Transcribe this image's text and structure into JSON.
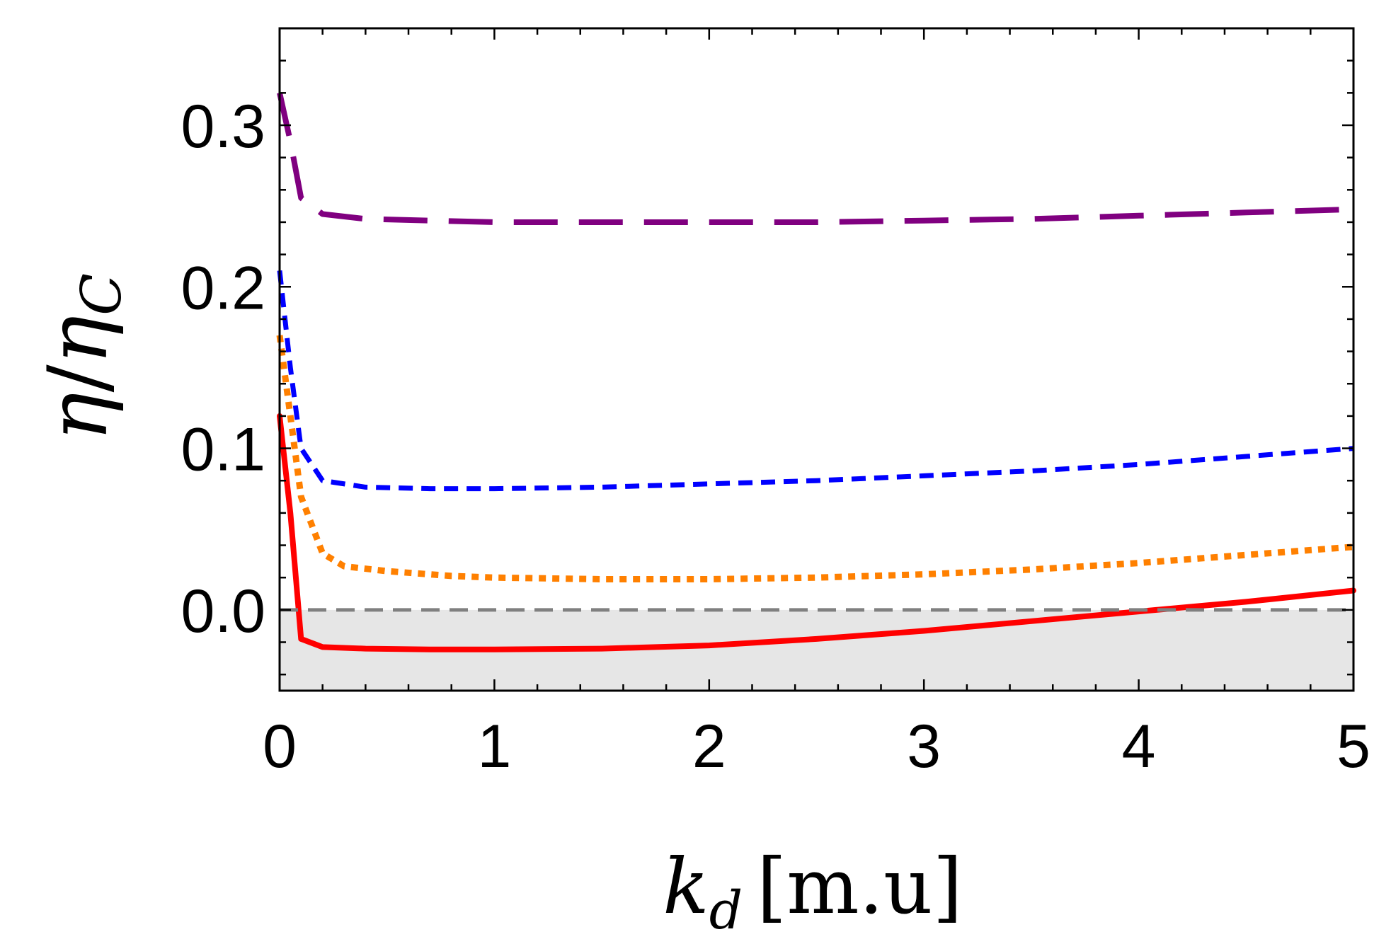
{
  "chart_data": {
    "type": "line",
    "title": "",
    "xlabel": "k_d [m.u]",
    "xlabel_parts": {
      "main": "k",
      "subscript": "d",
      "units": "[m.u]"
    },
    "ylabel": "η/η_C",
    "ylabel_parts": {
      "num": "η",
      "slash": "/",
      "den": "η",
      "den_subscript": "C"
    },
    "xlim": [
      0,
      5
    ],
    "ylim": [
      -0.05,
      0.36
    ],
    "xticks": [
      0,
      1,
      2,
      3,
      4,
      5
    ],
    "xtick_labels": [
      "0",
      "1",
      "2",
      "3",
      "4",
      "5"
    ],
    "yticks": [
      0.0,
      0.1,
      0.2,
      0.3
    ],
    "ytick_labels": [
      "0.0",
      "0.1",
      "0.2",
      "0.3"
    ],
    "grid": false,
    "shaded_region": {
      "y_from": -0.05,
      "y_to": 0.0,
      "color": "#e6e6e6"
    },
    "reference_line": {
      "y": 0.0,
      "color": "#808080",
      "style": "dashed"
    },
    "series": [
      {
        "name": "purple-long-dash",
        "color": "#800080",
        "style": "long-dash",
        "x": [
          0.0,
          0.05,
          0.1,
          0.2,
          0.4,
          0.7,
          1.0,
          1.5,
          2.0,
          2.5,
          3.0,
          3.5,
          4.0,
          4.5,
          5.0
        ],
        "y": [
          0.32,
          0.29,
          0.255,
          0.245,
          0.242,
          0.241,
          0.24,
          0.24,
          0.24,
          0.24,
          0.241,
          0.242,
          0.244,
          0.246,
          0.248
        ]
      },
      {
        "name": "blue-short-dash",
        "color": "#0000ff",
        "style": "short-dash",
        "x": [
          0.0,
          0.05,
          0.1,
          0.2,
          0.4,
          0.7,
          1.0,
          1.5,
          2.0,
          2.5,
          3.0,
          3.5,
          4.0,
          4.5,
          5.0
        ],
        "y": [
          0.21,
          0.15,
          0.1,
          0.08,
          0.076,
          0.075,
          0.075,
          0.076,
          0.078,
          0.08,
          0.083,
          0.086,
          0.09,
          0.095,
          0.1
        ]
      },
      {
        "name": "orange-dotted",
        "color": "#ff8000",
        "style": "dotted",
        "x": [
          0.0,
          0.05,
          0.1,
          0.2,
          0.3,
          0.5,
          0.8,
          1.0,
          1.5,
          2.0,
          2.5,
          3.0,
          3.5,
          4.0,
          4.5,
          5.0
        ],
        "y": [
          0.17,
          0.12,
          0.07,
          0.035,
          0.027,
          0.024,
          0.021,
          0.02,
          0.019,
          0.019,
          0.02,
          0.022,
          0.025,
          0.029,
          0.034,
          0.039
        ]
      },
      {
        "name": "red-solid",
        "color": "#ff0000",
        "style": "solid",
        "x": [
          0.0,
          0.05,
          0.1,
          0.2,
          0.4,
          0.7,
          1.0,
          1.5,
          2.0,
          2.5,
          3.0,
          3.5,
          4.0,
          4.5,
          5.0
        ],
        "y": [
          0.12,
          0.06,
          -0.018,
          -0.023,
          -0.024,
          -0.0245,
          -0.0245,
          -0.024,
          -0.022,
          -0.018,
          -0.013,
          -0.007,
          -0.001,
          0.005,
          0.012
        ]
      }
    ]
  }
}
